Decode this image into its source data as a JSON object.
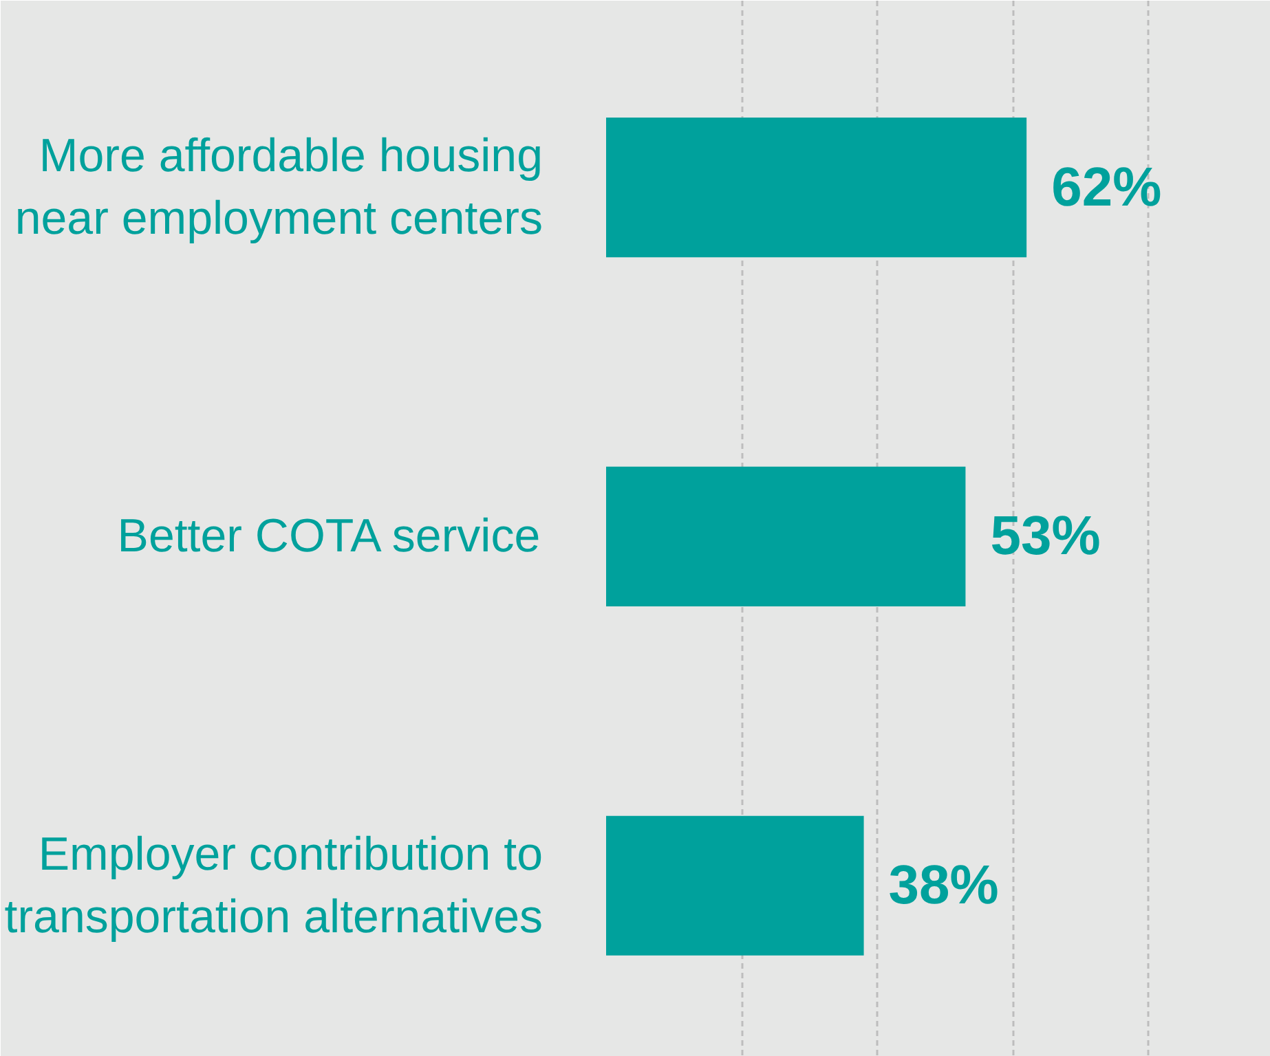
{
  "chart_data": {
    "type": "bar",
    "orientation": "horizontal",
    "categories": [
      "More affordable housing\nnear employment centers",
      "Better COTA service",
      "Employer contribution to\ntransportation alternatives"
    ],
    "values": [
      62,
      53,
      38
    ],
    "color": "#00a19c",
    "value_labels": [
      "62%",
      "53%",
      "38%"
    ],
    "xlim": [
      0,
      98
    ],
    "xticks": [
      {
        "value": 0,
        "label": null
      },
      {
        "value": 20,
        "label": null
      },
      {
        "value": 40,
        "label": null
      },
      {
        "value": 60,
        "label": null
      },
      {
        "value": 80,
        "label": null
      }
    ],
    "grid": "x",
    "tick_labels": "y"
  }
}
